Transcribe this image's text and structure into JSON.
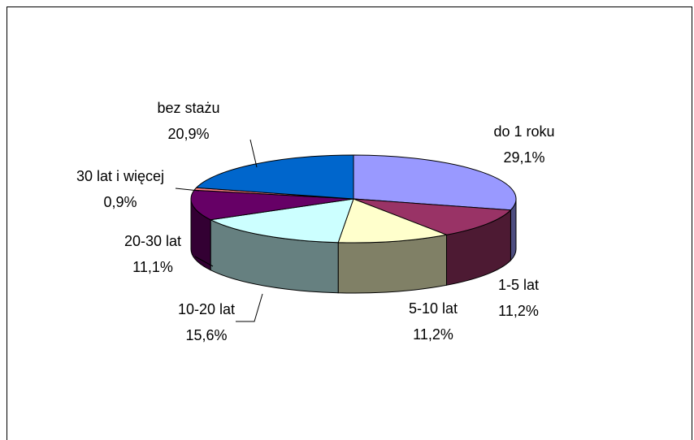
{
  "chart_data": {
    "type": "pie",
    "categories": [
      "do 1 roku",
      "1-5 lat",
      "5-10 lat",
      "10-20 lat",
      "20-30 lat",
      "30 lat i więcej",
      "bez stażu"
    ],
    "values": [
      29.1,
      11.2,
      11.2,
      15.6,
      11.1,
      0.9,
      20.9
    ],
    "value_labels": [
      "29,1%",
      "11,2%",
      "11,2%",
      "15,6%",
      "11,1%",
      "0,9%",
      "20,9%"
    ],
    "colors": [
      "#9999ff",
      "#993366",
      "#ffffcc",
      "#ccffff",
      "#660066",
      "#ff8080",
      "#0066cc"
    ]
  }
}
